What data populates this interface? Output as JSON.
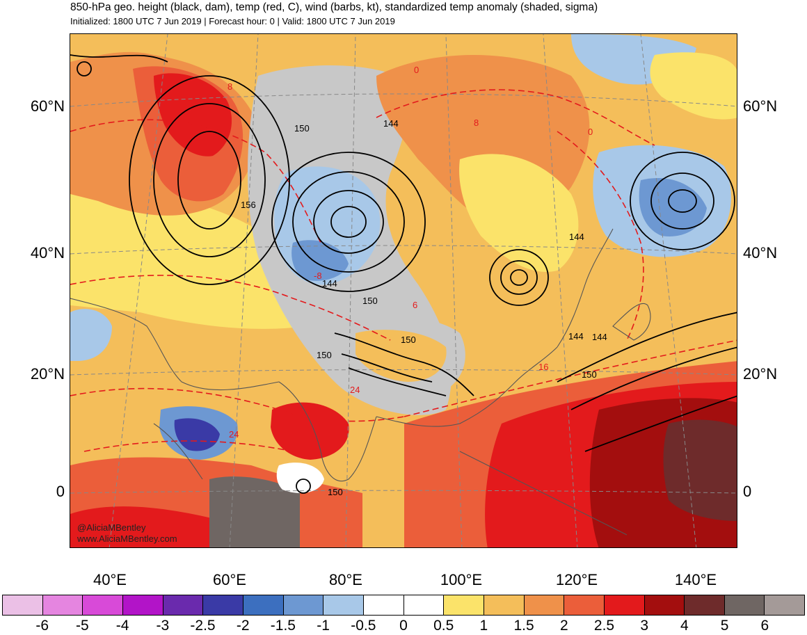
{
  "header": {
    "title": "850-hPa geo. height (black, dam), temp (red, C), wind (barbs, kt), standardized temp anomaly (shaded, sigma)",
    "subtitle": "Initialized: 1800 UTC 7 Jun 2019 | Forecast hour: 0 | Valid: 1800 UTC 7 Jun 2019"
  },
  "latitude_labels": [
    "60°N",
    "40°N",
    "20°N",
    "0"
  ],
  "longitude_labels": [
    "40°E",
    "60°E",
    "80°E",
    "100°E",
    "120°E",
    "140°E"
  ],
  "contour_labels": {
    "height": [
      "150",
      "144",
      "156",
      "144",
      "150",
      "150",
      "150",
      "144",
      "144",
      "150",
      "150",
      "144"
    ],
    "temperature": [
      "0",
      "8",
      "0",
      "8",
      "-8",
      "6",
      "16",
      "24",
      "24"
    ]
  },
  "credit": {
    "handle": "@AliciaMBentley",
    "website": "www.AliciaMBentley.com"
  },
  "colorbar": {
    "labels": [
      "-6",
      "-5",
      "-4",
      "-3",
      "-2.5",
      "-2",
      "-1.5",
      "-1",
      "-0.5",
      "0",
      "0.5",
      "1",
      "1.5",
      "2",
      "2.5",
      "3",
      "4",
      "5",
      "6"
    ],
    "colors": [
      "#ebc0e6",
      "#e585e0",
      "#d84ad8",
      "#b214c8",
      "#6a2aad",
      "#3a3aa6",
      "#3c6fbf",
      "#6d98d2",
      "#a8c8e8",
      "#ffffff",
      "#ffffff",
      "#fbe36a",
      "#f4be5a",
      "#ef914a",
      "#eb5e3a",
      "#e31a1c",
      "#a30e0e",
      "#6e2b2b",
      "#6f6663",
      "#a49a98"
    ]
  }
}
